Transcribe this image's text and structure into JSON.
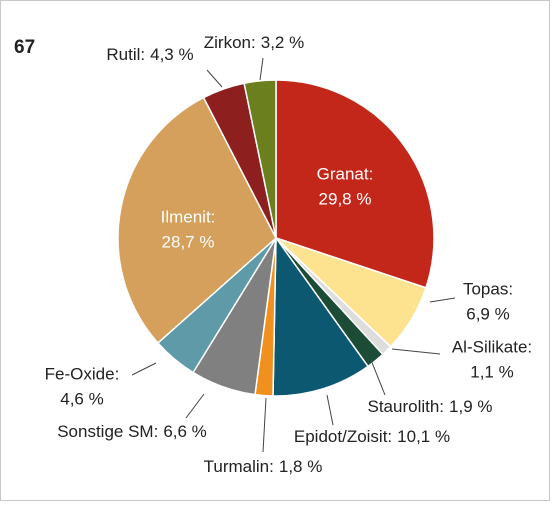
{
  "chart_data": {
    "type": "pie",
    "title": "67",
    "categories": [
      "Granat:",
      "Topas:",
      "Al-Silikate:",
      "Staurolith:",
      "Epidot/Zoisit:",
      "Turmalin:",
      "Sonstige SM:",
      "Fe-Oxide:",
      "Ilmenit:",
      "Rutil:",
      "Zirkon:"
    ],
    "values": [
      29.8,
      6.9,
      1.1,
      1.9,
      10.1,
      1.8,
      6.6,
      4.6,
      28.7,
      4.3,
      3.2
    ],
    "value_labels": [
      "29,8 %",
      "6,9 %",
      "1,1 %",
      "1,9 %",
      "10,1 %",
      "1,8 %",
      "6,6 %",
      "4,6 %",
      "28,7 %",
      "4,3 %",
      "3,2 %"
    ],
    "colors": [
      "#c3271a",
      "#fde390",
      "#dddddd",
      "#1d4c36",
      "#0b5870",
      "#f0901e",
      "#808080",
      "#5f9aa9",
      "#d4a05b",
      "#8d1f1f",
      "#6c7f1e"
    ]
  }
}
